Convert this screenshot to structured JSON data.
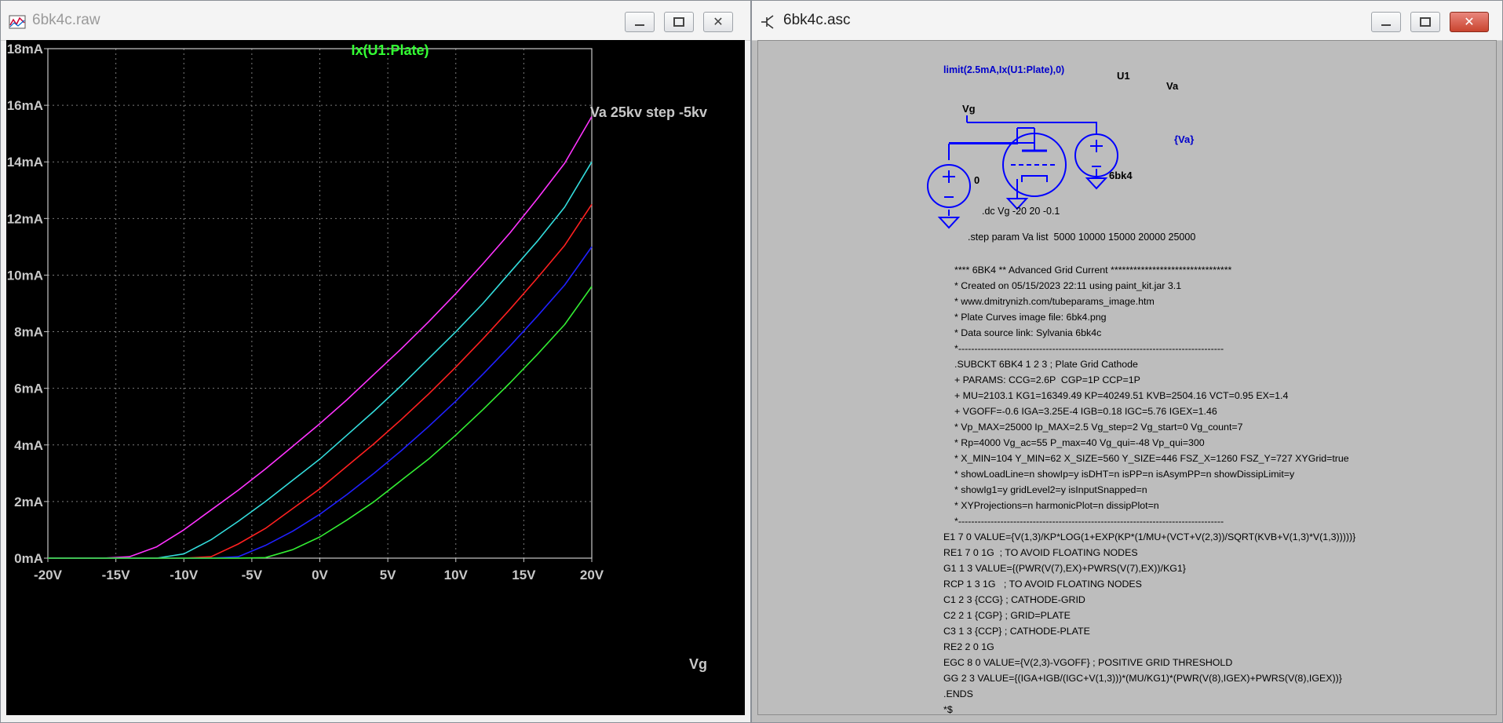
{
  "plot_window": {
    "title": "6bk4c.raw",
    "min_label": "▭",
    "max_label": "▢",
    "close_label": "✕",
    "trace_title": "Ix(U1:Plate)",
    "step_annotation": "Va 25kv step -5kv",
    "xaxis_name": "Vg",
    "colors": {
      "background": "#000000",
      "grid": "#7a7a7a",
      "axis_text": "#c8c8c8",
      "trace_title": "#33ff33"
    }
  },
  "chart_data": {
    "type": "line",
    "title": "Ix(U1:Plate)",
    "xlabel": "Vg",
    "ylabel": "",
    "xlim": [
      -20,
      20
    ],
    "ylim": [
      0,
      18
    ],
    "grid": true,
    "x_ticks": [
      "-20V",
      "-15V",
      "-10V",
      "-5V",
      "0V",
      "5V",
      "10V",
      "15V",
      "20V"
    ],
    "y_ticks": [
      "0mA",
      "2mA",
      "4mA",
      "6mA",
      "8mA",
      "10mA",
      "12mA",
      "14mA",
      "16mA",
      "18mA"
    ],
    "x": [
      -20,
      -16,
      -14,
      -12,
      -10,
      -8,
      -6,
      -4,
      -2,
      0,
      2,
      4,
      6,
      8,
      10,
      12,
      14,
      16,
      18,
      20
    ],
    "series": [
      {
        "color": "#ff33ff",
        "values": [
          0,
          0,
          0.05,
          0.4,
          1.0,
          1.7,
          2.4,
          3.15,
          3.95,
          4.75,
          5.6,
          6.5,
          7.4,
          8.35,
          9.35,
          10.4,
          11.5,
          12.7,
          13.95,
          15.6
        ]
      },
      {
        "color": "#33dddd",
        "values": [
          0,
          0,
          0,
          0,
          0.15,
          0.65,
          1.3,
          2.0,
          2.75,
          3.5,
          4.35,
          5.2,
          6.1,
          7.05,
          8.0,
          9.0,
          10.1,
          11.2,
          12.4,
          14.0
        ]
      },
      {
        "color": "#ff2020",
        "values": [
          0,
          0,
          0,
          0,
          0,
          0.05,
          0.5,
          1.05,
          1.75,
          2.45,
          3.25,
          4.05,
          4.9,
          5.8,
          6.75,
          7.75,
          8.8,
          9.9,
          11.05,
          12.5
        ]
      },
      {
        "color": "#2020ff",
        "values": [
          0,
          0,
          0,
          0,
          0,
          0,
          0.05,
          0.45,
          0.95,
          1.55,
          2.25,
          3.0,
          3.8,
          4.65,
          5.55,
          6.5,
          7.5,
          8.55,
          9.65,
          11.0
        ]
      },
      {
        "color": "#33ee33",
        "values": [
          0,
          0,
          0,
          0,
          0,
          0,
          0,
          0.02,
          0.3,
          0.75,
          1.35,
          2.0,
          2.75,
          3.5,
          4.35,
          5.25,
          6.2,
          7.2,
          8.25,
          9.6
        ]
      }
    ]
  },
  "schematic_window": {
    "title": "6bk4c.asc",
    "min_label": "▭",
    "max_label": "▢",
    "close_label": "✕",
    "labels": {
      "probe": "limit(2.5mA,Ix(U1:Plate),0)",
      "u1": "U1",
      "va": "Va",
      "vg": "Vg",
      "va_value": "{Va}",
      "vg_value": "0",
      "tube_model": "6bk4",
      "dc_directive": ".dc Vg -20 20 -0.1",
      "step_directive": ".step param Va list  5000 10000 15000 20000 25000"
    },
    "colors": {
      "wire": "#0000ff",
      "label": "#000000",
      "probe": "#0000cc"
    },
    "netlist": [
      "**** 6BK4 ** Advanced Grid Current ********************************",
      "* Created on 05/15/2023 22:11 using paint_kit.jar 3.1",
      "* www.dmitrynizh.com/tubeparams_image.htm",
      "* Plate Curves image file: 6bk4.png",
      "* Data source link: Sylvania 6bk4c",
      "*----------------------------------------------------------------------------------",
      ".SUBCKT 6BK4 1 2 3 ; Plate Grid Cathode",
      "+ PARAMS: CCG=2.6P  CGP=1P CCP=1P",
      "+ MU=2103.1 KG1=16349.49 KP=40249.51 KVB=2504.16 VCT=0.95 EX=1.4",
      "+ VGOFF=-0.6 IGA=3.25E-4 IGB=0.18 IGC=5.76 IGEX=1.46",
      "* Vp_MAX=25000 Ip_MAX=2.5 Vg_step=2 Vg_start=0 Vg_count=7",
      "* Rp=4000 Vg_ac=55 P_max=40 Vg_qui=-48 Vp_qui=300",
      "* X_MIN=104 Y_MIN=62 X_SIZE=560 Y_SIZE=446 FSZ_X=1260 FSZ_Y=727 XYGrid=true",
      "* showLoadLine=n showIp=y isDHT=n isPP=n isAsymPP=n showDissipLimit=y",
      "* showIg1=y gridLevel2=y isInputSnapped=n",
      "* XYProjections=n harmonicPlot=n dissipPlot=n",
      "*----------------------------------------------------------------------------------",
      "E1 7 0 VALUE={V(1,3)/KP*LOG(1+EXP(KP*(1/MU+(VCT+V(2,3))/SQRT(KVB+V(1,3)*V(1,3)))))}",
      "RE1 7 0 1G  ; TO AVOID FLOATING NODES",
      "G1 1 3 VALUE={(PWR(V(7),EX)+PWRS(V(7),EX))/KG1}",
      "RCP 1 3 1G   ; TO AVOID FLOATING NODES",
      "C1 2 3 {CCG} ; CATHODE-GRID",
      "C2 2 1 {CGP} ; GRID=PLATE",
      "C3 1 3 {CCP} ; CATHODE-PLATE",
      "RE2 2 0 1G",
      "EGC 8 0 VALUE={V(2,3)-VGOFF} ; POSITIVE GRID THRESHOLD",
      "GG 2 3 VALUE={(IGA+IGB/(IGC+V(1,3)))*(MU/KG1)*(PWR(V(8),IGEX)+PWRS(V(8),IGEX))}",
      ".ENDS",
      "*$"
    ]
  }
}
